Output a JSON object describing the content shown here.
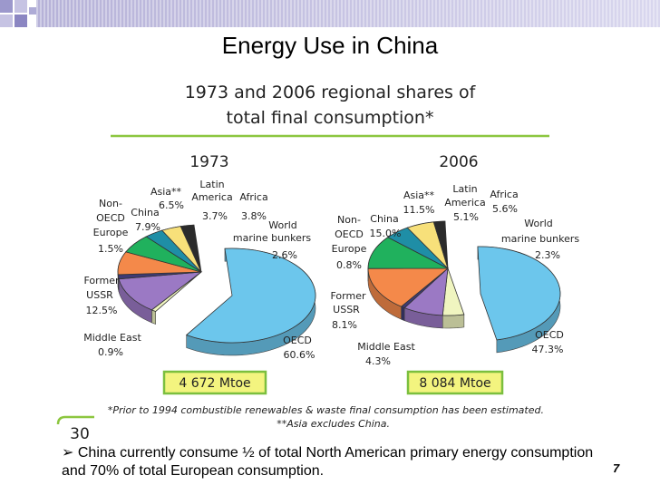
{
  "slide": {
    "title": "Energy Use in China",
    "bullet_marker": "➢",
    "bullet_text": "China currently consume ½ of total North American primary energy consumption and 70% of total European consumption.",
    "page_number": "7",
    "badge_number": "30"
  },
  "colors": {
    "oecd": "#6cc6ec",
    "middle_east": "#f0f5c0",
    "former_ussr": "#9b79c4",
    "non_oecd_europe": "#3e3a74",
    "china": "#f4894a",
    "asia": "#20b15d",
    "latin_america": "#1f8ea6",
    "africa": "#f7e07a",
    "bunkers": "#2b2b2b",
    "rule": "#8cc63f",
    "mtoe_fill": "#f3f47f",
    "mtoe_border": "#7bbf3e"
  },
  "chart_data": {
    "type": "pie",
    "title": "1973 and 2006 regional shares of",
    "title_line2": "total final consumption*",
    "footnote1": "*Prior to 1994 combustible renewables & waste final consumption has been estimated.",
    "footnote2": "**Asia excludes China.",
    "pies": [
      {
        "year": "1973",
        "total": "4 672 Mtoe",
        "slices": [
          {
            "key": "oecd",
            "label": [
              "OECD"
            ],
            "value": 60.6,
            "value_label": "60.6%"
          },
          {
            "key": "middle_east",
            "label": [
              "Middle East"
            ],
            "value": 0.9,
            "value_label": "0.9%"
          },
          {
            "key": "former_ussr",
            "label": [
              "Former",
              "USSR"
            ],
            "value": 12.5,
            "value_label": "12.5%"
          },
          {
            "key": "non_oecd_europe",
            "label": [
              "Non-",
              "OECD",
              "Europe"
            ],
            "value": 1.5,
            "value_label": "1.5%"
          },
          {
            "key": "china",
            "label": [
              "China"
            ],
            "value": 7.9,
            "value_label": "7.9%"
          },
          {
            "key": "asia",
            "label": [
              "Asia**"
            ],
            "value": 6.5,
            "value_label": "6.5%"
          },
          {
            "key": "latin_america",
            "label": [
              "Latin",
              "America"
            ],
            "value": 3.7,
            "value_label": "3.7%"
          },
          {
            "key": "africa",
            "label": [
              "Africa"
            ],
            "value": 3.8,
            "value_label": "3.8%"
          },
          {
            "key": "bunkers",
            "label": [
              "World",
              "marine bunkers"
            ],
            "value": 2.6,
            "value_label": "2.6%"
          }
        ]
      },
      {
        "year": "2006",
        "total": "8 084 Mtoe",
        "slices": [
          {
            "key": "oecd",
            "label": [
              "OECD"
            ],
            "value": 47.3,
            "value_label": "47.3%"
          },
          {
            "key": "middle_east",
            "label": [
              "Middle East"
            ],
            "value": 4.3,
            "value_label": "4.3%"
          },
          {
            "key": "former_ussr",
            "label": [
              "Former",
              "USSR"
            ],
            "value": 8.1,
            "value_label": "8.1%"
          },
          {
            "key": "non_oecd_europe",
            "label": [
              "Non-",
              "OECD",
              "Europe"
            ],
            "value": 0.8,
            "value_label": "0.8%"
          },
          {
            "key": "china",
            "label": [
              "China"
            ],
            "value": 15.0,
            "value_label": "15.0%"
          },
          {
            "key": "asia",
            "label": [
              "Asia**"
            ],
            "value": 11.5,
            "value_label": "11.5%"
          },
          {
            "key": "latin_america",
            "label": [
              "Latin",
              "America"
            ],
            "value": 5.1,
            "value_label": "5.1%"
          },
          {
            "key": "africa",
            "label": [
              "Africa"
            ],
            "value": 5.6,
            "value_label": "5.6%"
          },
          {
            "key": "bunkers",
            "label": [
              "World",
              "marine bunkers"
            ],
            "value": 2.3,
            "value_label": "2.3%"
          }
        ]
      }
    ]
  }
}
